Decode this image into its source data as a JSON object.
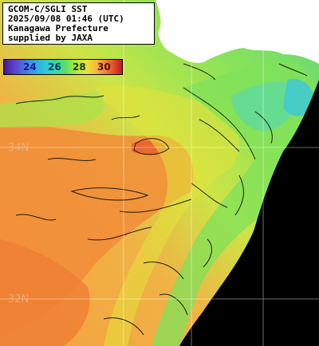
{
  "title_box": {
    "line1": "GCOM-C/SGLI SST",
    "line2": "2025/09/08 01:46 (UTC)",
    "line3": "Kanagawa Prefecture",
    "line4": "supplied by JAXA"
  },
  "colorbar": {
    "ticks": [
      "24",
      "26",
      "28",
      "30"
    ],
    "tick_colors": [
      "#1a1a8a",
      "#0a3a6a",
      "#1a3a0a",
      "#5a0a0a"
    ]
  },
  "latitude_labels": [
    "34N",
    "32N"
  ],
  "colors": {
    "land": "#ffffff",
    "no_data": "#000000",
    "warm": "#f08a3a",
    "mid": "#e8e637",
    "cool": "#59e06a",
    "cold": "#2ec9d8"
  }
}
